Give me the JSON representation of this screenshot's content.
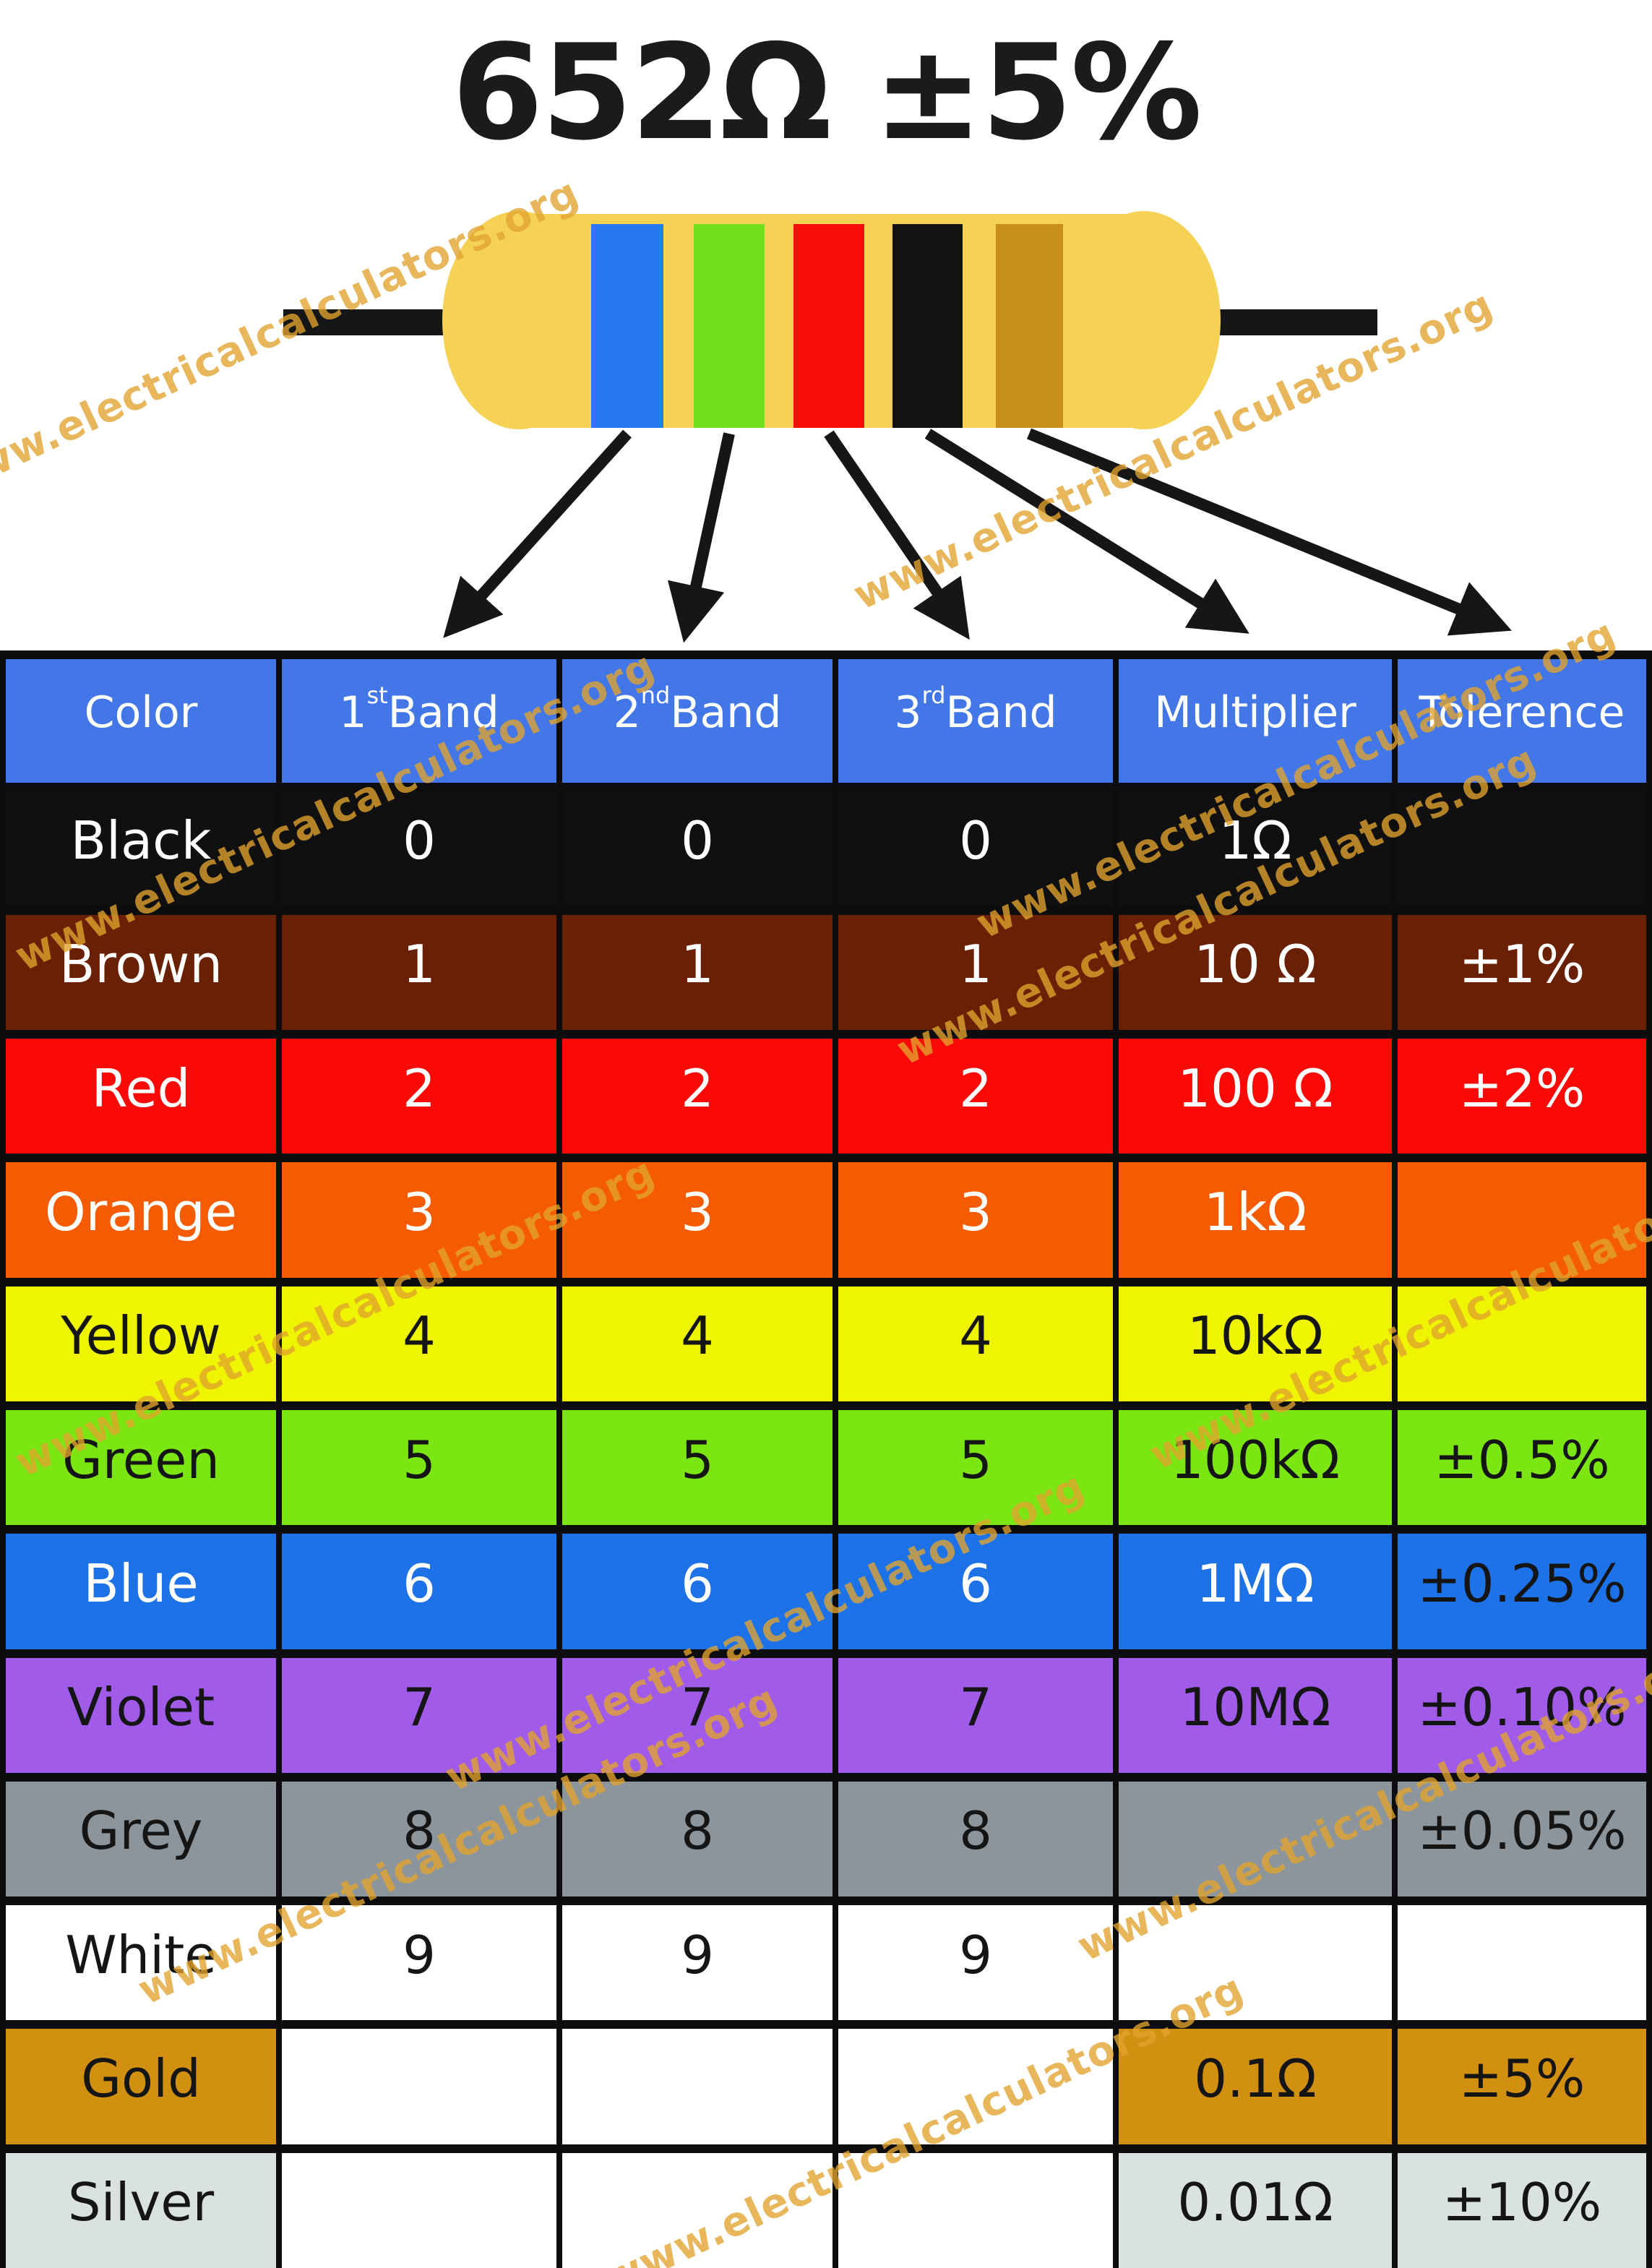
{
  "title": "652Ω ±5%",
  "watermark": {
    "text": "www.electricalcalculators.org",
    "color": "#E2A42E"
  },
  "resistor": {
    "body_color": "#F6D254",
    "lead_color": "#161616",
    "bands": [
      {
        "id": "band-blue",
        "digit": "6",
        "color": "#2779EF"
      },
      {
        "id": "band-green",
        "digit": "5",
        "color": "#72E01F"
      },
      {
        "id": "band-red",
        "digit": "2",
        "color": "#F60D09"
      },
      {
        "id": "band-black",
        "digit": "0",
        "color": "#121212"
      },
      {
        "id": "band-gold",
        "digit": "tolerance",
        "color": "#C88F1D"
      }
    ]
  },
  "table": {
    "border_color": "#0d0d0f",
    "header": {
      "bg": "#4377E8",
      "fg": "#FFFFFF",
      "cells": [
        {
          "label": "Color"
        },
        {
          "num": "1",
          "sup": "st",
          "rest": " Band"
        },
        {
          "num": "2",
          "sup": "nd",
          "rest": " Band"
        },
        {
          "num": "3",
          "sup": "rd",
          "rest": " Band"
        },
        {
          "label": "Multiplier"
        },
        {
          "label": "Tolerence"
        }
      ]
    },
    "rows": [
      {
        "key": "black",
        "cells": [
          "Black",
          "0",
          "0",
          "0",
          "1Ω",
          ""
        ],
        "bg": "#101011",
        "fg": "#FFFFFF"
      },
      {
        "key": "brown",
        "cells": [
          "Brown",
          "1",
          "1",
          "1",
          "10 Ω",
          "±1%"
        ],
        "bg": "#6A2002",
        "fg": "#FFFFFF"
      },
      {
        "key": "red",
        "cells": [
          "Red",
          "2",
          "2",
          "2",
          "100 Ω",
          "±2%"
        ],
        "bg": "#FA0A06",
        "fg": "#FFFFFF"
      },
      {
        "key": "orange",
        "cells": [
          "Orange",
          "3",
          "3",
          "3",
          "1kΩ",
          ""
        ],
        "bg": "#F55C02",
        "fg": "#FFFFFF"
      },
      {
        "key": "yellow",
        "cells": [
          "Yellow",
          "4",
          "4",
          "4",
          "10kΩ",
          ""
        ],
        "bg": "#EFF400",
        "fg": "#151515"
      },
      {
        "key": "green",
        "cells": [
          "Green",
          "5",
          "5",
          "5",
          "100kΩ",
          "±0.5%"
        ],
        "bg": "#7BE612",
        "fg": "#151515"
      },
      {
        "key": "blue",
        "cells": [
          "Blue",
          "6",
          "6",
          "6",
          "1MΩ",
          "±0.25%"
        ],
        "bg": "#1D72E8",
        "fg": "#FFFFFF",
        "tol_fg": "#151515"
      },
      {
        "key": "violet",
        "cells": [
          "Violet",
          "7",
          "7",
          "7",
          "10MΩ",
          "±0.10%"
        ],
        "bg": "#A05CE8",
        "fg": "#151515"
      },
      {
        "key": "grey",
        "cells": [
          "Grey",
          "8",
          "8",
          "8",
          "",
          "±0.05%"
        ],
        "bg": "#8C959B",
        "fg": "#151515"
      },
      {
        "key": "white",
        "cells": [
          "White",
          "9",
          "9",
          "9",
          "",
          ""
        ],
        "bg": "#FFFFFF",
        "fg": "#151515"
      },
      {
        "key": "gold",
        "cells": [
          "Gold",
          "",
          "",
          "",
          "0.1Ω",
          "±5%"
        ],
        "bg": "#D29010",
        "fg": "#151515",
        "band_bg": "#FFFFFF"
      },
      {
        "key": "silver",
        "cells": [
          "Silver",
          "",
          "",
          "",
          "0.01Ω",
          "±10%"
        ],
        "bg": "#D9E2DF",
        "fg": "#151515",
        "band_bg": "#FFFFFF"
      }
    ]
  }
}
